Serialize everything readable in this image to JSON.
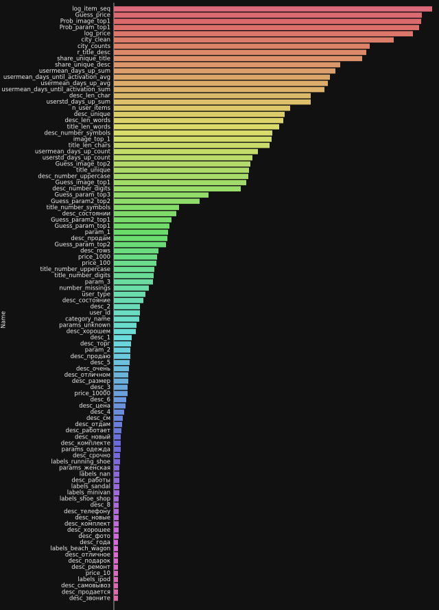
{
  "chart_data": {
    "type": "barh",
    "ylabel": "Name",
    "palette": "husl",
    "categories": [
      "log_item_seq",
      "Guess_price",
      "Prob_image_top1",
      "Prob_param_top1",
      "log_price",
      "city_clean",
      "city_counts",
      "r_title_desc",
      "share_unique_title",
      "share_unique_desc",
      "usermean_days_up_sum",
      "usermean_days_until_activation_avg",
      "usermean_days_up_avg",
      "usermean_days_until_activation_sum",
      "desc_len_char",
      "userstd_days_up_sum",
      "n_user_items",
      "desc_unique",
      "desc_len_words",
      "title_len_words",
      "desc_number_symbols",
      "image_top_1",
      "title_len_chars",
      "usermean_days_up_count",
      "userstd_days_up_count",
      "Guess_image_top2",
      "title_unique",
      "desc_number_uppercase",
      "Guess_image_top1",
      "desc_number_digits",
      "Guess_param_top3",
      "Guess_param2_top2",
      "title_number_symbols",
      "desc_состоянии",
      "Guess_param2_top1",
      "Guess_param_top1",
      "param_1",
      "desc_продам",
      "Guess_param_top2",
      "desc_rows",
      "price_1000",
      "price_100",
      "title_number_uppercase",
      "title_number_digits",
      "param_3",
      "number_missings",
      "user_type",
      "desc_состояние",
      "desc_2",
      "user_id",
      "category_name",
      "params_unknown",
      "desc_хорошем",
      "desc_1",
      "desc_торг",
      "param_2",
      "desc_продаю",
      "desc_5",
      "desc_очень",
      "desc_отличном",
      "desc_размер",
      "desc_3",
      "price_10000",
      "desc_6",
      "desc_цена",
      "desc_4",
      "desc_см",
      "desc_отдам",
      "desc_работает",
      "desc_новый",
      "desc_комплекте",
      "params_одежда",
      "desc_срочно",
      "labels_running_shoe",
      "params_женская",
      "labels_nan",
      "desc_работы",
      "labels_sandal",
      "labels_minivan",
      "labels_shoe_shop",
      "desc_8",
      "desc_телефону",
      "desc_новые",
      "desc_комплект",
      "desc_хорошее",
      "desc_фото",
      "desc_года",
      "labels_beach_wagon",
      "desc_отличное",
      "desc_подарок",
      "desc_ремонт",
      "price_10",
      "labels_ipod",
      "desc_самовывоз",
      "desc_продается",
      "desc_звоните"
    ],
    "values": [
      464,
      449,
      448,
      445,
      436,
      408,
      373,
      368,
      362,
      330,
      323,
      315,
      312,
      307,
      287,
      287,
      257,
      249,
      247,
      241,
      231,
      230,
      227,
      210,
      202,
      199,
      197,
      196,
      193,
      185,
      138,
      125,
      95,
      91,
      84,
      81,
      79,
      78,
      76,
      65,
      63,
      62,
      59,
      58,
      57,
      51,
      46,
      43,
      38,
      38,
      37,
      33,
      32,
      26,
      25,
      24,
      24,
      23,
      22,
      21,
      21,
      20,
      20,
      18,
      17,
      15,
      13,
      12,
      11,
      10,
      10,
      10,
      9,
      9,
      8,
      8,
      8,
      8,
      8,
      7,
      7,
      7,
      7,
      7,
      7,
      7,
      6,
      6,
      6,
      6,
      6,
      6,
      6,
      6,
      6,
      6
    ]
  }
}
